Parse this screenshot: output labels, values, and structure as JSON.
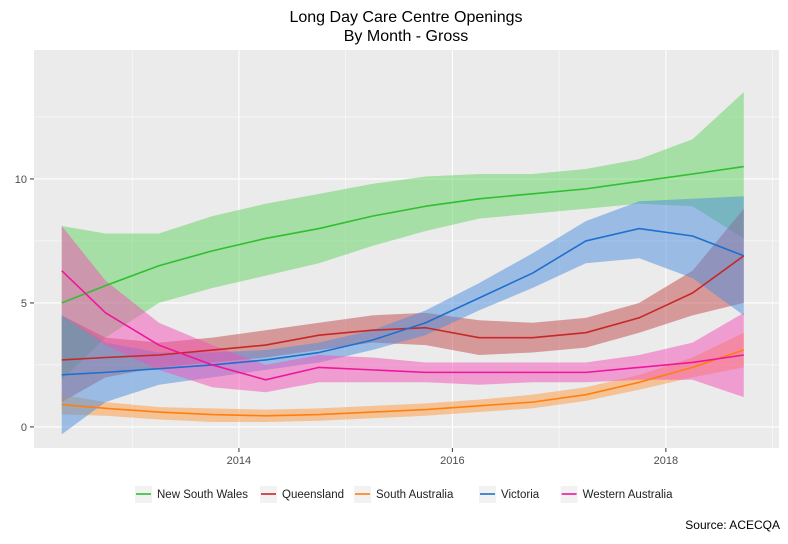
{
  "chart_data": {
    "type": "line",
    "title": "Long Day Care Centre Openings",
    "subtitle": "By Month - Gross",
    "caption": "Source: ACECQA",
    "x": [
      2012.34,
      2012.75,
      2013.25,
      2013.75,
      2014.25,
      2014.75,
      2015.25,
      2015.75,
      2016.25,
      2016.75,
      2017.25,
      2017.75,
      2018.25,
      2018.73
    ],
    "xlim": [
      2012.08,
      2019.06
    ],
    "xticks": [
      2014,
      2016,
      2018
    ],
    "xminor_ticks": [
      2013,
      2015,
      2017,
      2019
    ],
    "ylim": [
      -0.85,
      15.2
    ],
    "yticks": [
      0,
      5,
      10
    ],
    "yminor_ticks": [
      2.5,
      7.5,
      12.5
    ],
    "grid": true,
    "legend_position": "bottom",
    "series": [
      {
        "name": "New South Wales",
        "color": "#2fbf2f",
        "band_color": "#5fd35f",
        "values": [
          5.0,
          5.7,
          6.5,
          7.1,
          7.6,
          8.0,
          8.5,
          8.9,
          9.2,
          9.4,
          9.6,
          9.9,
          10.2,
          10.5
        ],
        "lower": [
          1.9,
          3.6,
          5.0,
          5.6,
          6.1,
          6.6,
          7.3,
          7.9,
          8.4,
          8.6,
          8.8,
          9.0,
          8.9,
          7.6
        ],
        "upper": [
          8.1,
          7.8,
          7.8,
          8.5,
          9.0,
          9.4,
          9.8,
          10.1,
          10.2,
          10.2,
          10.4,
          10.8,
          11.6,
          13.5
        ]
      },
      {
        "name": "Queensland",
        "color": "#c62828",
        "band_color": "#c24848",
        "values": [
          2.7,
          2.8,
          2.9,
          3.1,
          3.3,
          3.7,
          3.9,
          4.0,
          3.6,
          3.6,
          3.8,
          4.4,
          5.4,
          6.9
        ],
        "lower": [
          1.0,
          2.0,
          2.4,
          2.6,
          2.8,
          3.1,
          3.4,
          3.3,
          2.9,
          3.0,
          3.2,
          3.8,
          4.5,
          5.0
        ],
        "upper": [
          4.5,
          3.6,
          3.4,
          3.6,
          3.9,
          4.2,
          4.5,
          4.6,
          4.3,
          4.2,
          4.4,
          5.0,
          6.3,
          8.8
        ]
      },
      {
        "name": "South Australia",
        "color": "#ff7f0e",
        "band_color": "#ff9a40",
        "values": [
          0.9,
          0.75,
          0.6,
          0.5,
          0.45,
          0.5,
          0.6,
          0.7,
          0.85,
          1.0,
          1.3,
          1.8,
          2.4,
          3.1
        ],
        "lower": [
          0.5,
          0.45,
          0.3,
          0.2,
          0.2,
          0.25,
          0.35,
          0.45,
          0.6,
          0.75,
          1.05,
          1.5,
          2.0,
          2.4
        ],
        "upper": [
          1.3,
          1.0,
          0.8,
          0.75,
          0.7,
          0.75,
          0.85,
          0.95,
          1.1,
          1.3,
          1.6,
          2.1,
          2.8,
          3.8
        ]
      },
      {
        "name": "Victoria",
        "color": "#1f6fcc",
        "band_color": "#4a8ede",
        "values": [
          2.1,
          2.2,
          2.35,
          2.5,
          2.7,
          3.0,
          3.5,
          4.2,
          5.2,
          6.2,
          7.5,
          8.0,
          7.7,
          6.9
        ],
        "lower": [
          -0.3,
          1.0,
          1.7,
          2.0,
          2.3,
          2.6,
          3.1,
          3.7,
          4.7,
          5.6,
          6.6,
          6.8,
          6.0,
          4.5
        ],
        "upper": [
          4.5,
          3.4,
          3.0,
          3.0,
          3.1,
          3.4,
          3.9,
          4.7,
          5.8,
          7.0,
          8.3,
          9.1,
          9.2,
          9.3
        ]
      },
      {
        "name": "Western Australia",
        "color": "#f0169c",
        "band_color": "#f44fb6",
        "values": [
          6.3,
          4.6,
          3.3,
          2.5,
          1.9,
          2.4,
          2.3,
          2.2,
          2.2,
          2.2,
          2.2,
          2.4,
          2.6,
          2.9
        ],
        "lower": [
          4.5,
          3.3,
          2.3,
          1.6,
          1.4,
          1.8,
          1.8,
          1.8,
          1.7,
          1.8,
          1.8,
          1.9,
          1.9,
          1.2
        ],
        "upper": [
          8.1,
          5.9,
          4.2,
          3.3,
          2.5,
          2.9,
          2.8,
          2.6,
          2.6,
          2.6,
          2.6,
          2.9,
          3.4,
          4.6
        ]
      }
    ]
  }
}
